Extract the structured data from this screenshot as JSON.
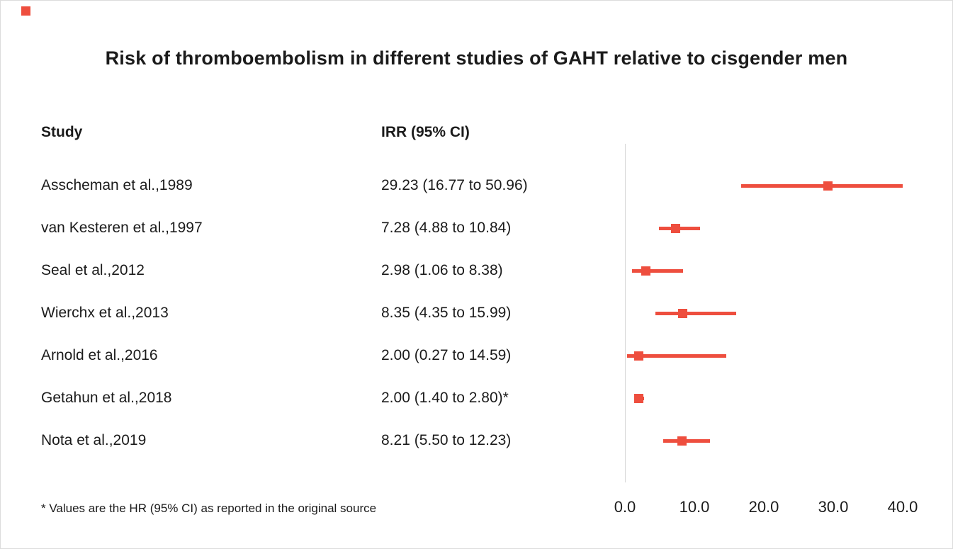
{
  "header": {
    "title": "Risk of thromboembolism in different studies of GAHT relative to cisgender men"
  },
  "columns": {
    "study_header": "Study",
    "irr_header": "IRR (95% CI)"
  },
  "footnote": "* Values are the HR (95% CI) as reported in the original source",
  "colors": {
    "accent": "#ee4e3e",
    "axis": "#d8d8d8",
    "text": "#1b1b1b"
  },
  "chart_data": {
    "type": "scatter",
    "subtype": "forest-plot",
    "title": "Risk of thromboembolism in different studies of GAHT relative to cisgender men",
    "xlabel": "",
    "ylabel": "",
    "xlim": [
      0,
      40
    ],
    "x_ticks": [
      {
        "label": "0.0",
        "value": 0
      },
      {
        "label": "10.0",
        "value": 10
      },
      {
        "label": "20.0",
        "value": 20
      },
      {
        "label": "30.0",
        "value": 30
      },
      {
        "label": "40.0",
        "value": 40
      }
    ],
    "grid": false,
    "legend": "none",
    "rows": [
      {
        "study": "Asscheman et al.,1989",
        "irr_label": "29.23 (16.77 to 50.96)",
        "irr": 29.23,
        "ci_low": 16.77,
        "ci_high": 50.96
      },
      {
        "study": "van Kesteren et al.,1997",
        "irr_label": "7.28 (4.88 to 10.84)",
        "irr": 7.28,
        "ci_low": 4.88,
        "ci_high": 10.84
      },
      {
        "study": "Seal et al.,2012",
        "irr_label": "2.98 (1.06 to 8.38)",
        "irr": 2.98,
        "ci_low": 1.06,
        "ci_high": 8.38
      },
      {
        "study": "Wierchx et al.,2013",
        "irr_label": "8.35 (4.35 to 15.99)",
        "irr": 8.35,
        "ci_low": 4.35,
        "ci_high": 15.99
      },
      {
        "study": "Arnold et al.,2016",
        "irr_label": "2.00 (0.27 to 14.59)",
        "irr": 2.0,
        "ci_low": 0.27,
        "ci_high": 14.59
      },
      {
        "study": "Getahun et al.,2018",
        "irr_label": "2.00 (1.40 to 2.80)*",
        "irr": 2.0,
        "ci_low": 1.4,
        "ci_high": 2.8
      },
      {
        "study": "Nota et al.,2019",
        "irr_label": "8.21 (5.50 to 12.23)",
        "irr": 8.21,
        "ci_low": 5.5,
        "ci_high": 12.23
      }
    ]
  }
}
